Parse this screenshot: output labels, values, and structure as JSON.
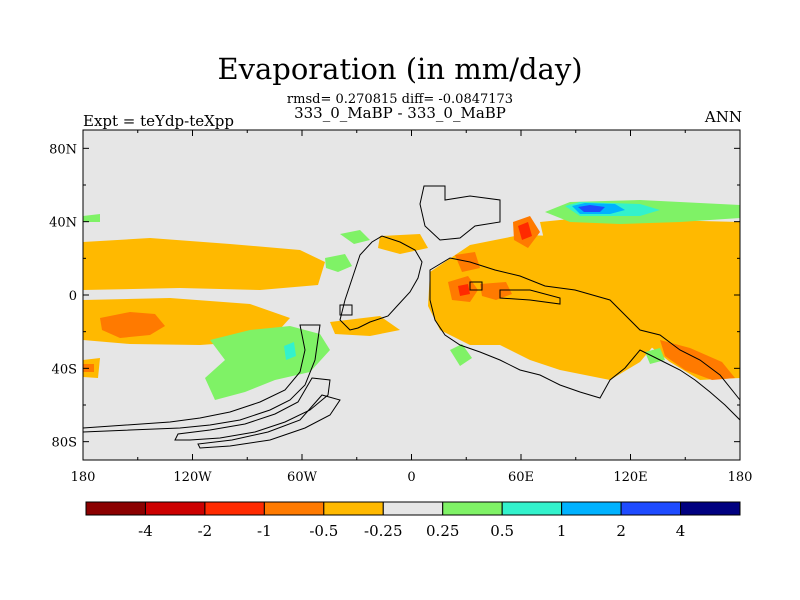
{
  "title": "Evaporation (in mm/day)",
  "stats": "rmsd= 0.270815 diff= -0.0847173",
  "subtitle": "333_0_MaBP - 333_0_MaBP",
  "expt": "Expt = teYdp-teXpp",
  "season": "ANN",
  "chart_data": {
    "type": "heatmap",
    "title": "Evaporation (in mm/day)",
    "projection": "cylindrical equidistant",
    "xlim": [
      -180,
      180
    ],
    "ylim": [
      -90,
      90
    ],
    "x_ticks": [
      {
        "value": -180,
        "label": "180"
      },
      {
        "value": -120,
        "label": "120W"
      },
      {
        "value": -60,
        "label": "60W"
      },
      {
        "value": 0,
        "label": "0"
      },
      {
        "value": 60,
        "label": "60E"
      },
      {
        "value": 120,
        "label": "120E"
      },
      {
        "value": 180,
        "label": "180"
      }
    ],
    "y_ticks": [
      {
        "value": 80,
        "label": "80N"
      },
      {
        "value": 40,
        "label": "40N"
      },
      {
        "value": 0,
        "label": "0"
      },
      {
        "value": -40,
        "label": "40S"
      },
      {
        "value": -80,
        "label": "80S"
      }
    ],
    "colorbar": {
      "levels": [
        "-4",
        "-2",
        "-1",
        "-0.5",
        "-0.25",
        "0.25",
        "0.5",
        "1",
        "2",
        "4"
      ],
      "colors": [
        "#8B0000",
        "#CC0000",
        "#FF2A00",
        "#FF7A00",
        "#FFB900",
        "#E6E6E6",
        "#7FF266",
        "#33F2CC",
        "#00B2FF",
        "#1E4BFF",
        "#000080"
      ]
    },
    "background_value_range": "-0.25 to 0.25",
    "regions": [
      {
        "class": "-0.5 to -0.25",
        "lon": [
          -180,
          -80
        ],
        "lat": [
          -45,
          35
        ],
        "desc": "broad tropical Pacific band"
      },
      {
        "class": "-0.5 to -0.25",
        "lon": [
          20,
          180
        ],
        "lat": [
          -50,
          35
        ],
        "desc": "Afro-Asian tropics and Indian/West Pacific"
      },
      {
        "class": "-1 to -0.5",
        "lon": [
          30,
          50
        ],
        "lat": [
          -5,
          38
        ],
        "desc": "small patches near 0-40E"
      },
      {
        "class": "-1 to -0.5",
        "lon": [
          140,
          170
        ],
        "lat": [
          -45,
          -25
        ],
        "desc": "southwest Pacific patch"
      },
      {
        "class": "0.25 to 0.5",
        "lon": [
          85,
          155
        ],
        "lat": [
          40,
          55
        ],
        "desc": "northern Asia band"
      },
      {
        "class": "0.25 to 0.5",
        "lon": [
          -110,
          -40
        ],
        "lat": [
          -65,
          -25
        ],
        "desc": "southeast Pacific / South Atlantic"
      },
      {
        "class": "1 to 2",
        "lon": [
          88,
          118
        ],
        "lat": [
          42,
          50
        ],
        "desc": "Siberian maximum"
      },
      {
        "class": "2 to 4",
        "lon": [
          92,
          108
        ],
        "lat": [
          44,
          48
        ],
        "desc": "Siberian peak"
      }
    ]
  }
}
